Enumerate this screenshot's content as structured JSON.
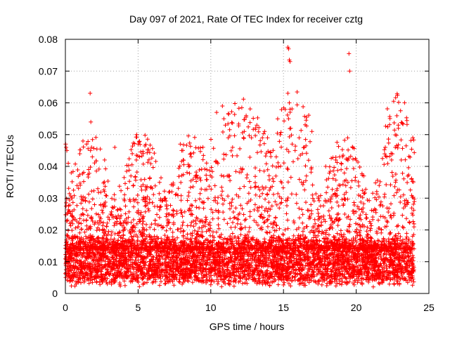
{
  "chart_data": {
    "type": "scatter",
    "title": "Day 097 of 2021, Rate Of TEC Index for receiver cztg",
    "xlabel": "GPS time / hours",
    "ylabel": "ROTI / TECUs",
    "xlim": [
      0,
      25
    ],
    "ylim": [
      0,
      0.08
    ],
    "xticks": [
      0,
      5,
      10,
      15,
      20,
      25
    ],
    "xtick_labels": [
      "0",
      "5",
      "10",
      "15",
      "20",
      "25"
    ],
    "yticks": [
      0,
      0.01,
      0.02,
      0.03,
      0.04,
      0.05,
      0.06,
      0.07,
      0.08
    ],
    "ytick_labels": [
      "0",
      "0.01",
      "0.02",
      "0.03",
      "0.04",
      "0.05",
      "0.06",
      "0.07",
      "0.08"
    ],
    "grid": true,
    "marker": "+",
    "color": "#ff0000",
    "series": [
      {
        "name": "ROTI",
        "x_range": [
          0,
          24
        ],
        "baseline_range": [
          0.004,
          0.016
        ],
        "outliers": [
          [
            0.02,
            0.047
          ],
          [
            0.05,
            0.046
          ],
          [
            0.1,
            0.045
          ],
          [
            0.2,
            0.041
          ],
          [
            0.4,
            0.038
          ],
          [
            1.7,
            0.063
          ],
          [
            1.75,
            0.054
          ],
          [
            1.8,
            0.046
          ],
          [
            1.85,
            0.043
          ],
          [
            1.6,
            0.039
          ],
          [
            2.7,
            0.042
          ],
          [
            3.4,
            0.046
          ],
          [
            4.6,
            0.044
          ],
          [
            4.9,
            0.05
          ],
          [
            5.0,
            0.047
          ],
          [
            5.1,
            0.043
          ],
          [
            7.9,
            0.047
          ],
          [
            8.0,
            0.045
          ],
          [
            8.1,
            0.042
          ],
          [
            10.4,
            0.057
          ],
          [
            10.8,
            0.059
          ],
          [
            10.9,
            0.055
          ],
          [
            11.0,
            0.053
          ],
          [
            11.2,
            0.049
          ],
          [
            11.5,
            0.046
          ],
          [
            12.3,
            0.051
          ],
          [
            12.8,
            0.049
          ],
          [
            13.7,
            0.051
          ],
          [
            13.9,
            0.049
          ],
          [
            14.5,
            0.043
          ],
          [
            15.3,
            0.0775
          ],
          [
            15.35,
            0.077
          ],
          [
            15.4,
            0.0735
          ],
          [
            15.45,
            0.073
          ],
          [
            15.3,
            0.063
          ],
          [
            15.4,
            0.06
          ],
          [
            15.45,
            0.058
          ],
          [
            15.35,
            0.055
          ],
          [
            15.5,
            0.052
          ],
          [
            15.6,
            0.047
          ],
          [
            15.8,
            0.045
          ],
          [
            16.3,
            0.044
          ],
          [
            17.9,
            0.04
          ],
          [
            19.5,
            0.0755
          ],
          [
            19.55,
            0.07
          ],
          [
            22.0,
            0.046
          ],
          [
            22.1,
            0.043
          ],
          [
            22.9,
            0.052
          ],
          [
            23.1,
            0.042
          ],
          [
            23.8,
            0.036
          ]
        ]
      }
    ]
  }
}
